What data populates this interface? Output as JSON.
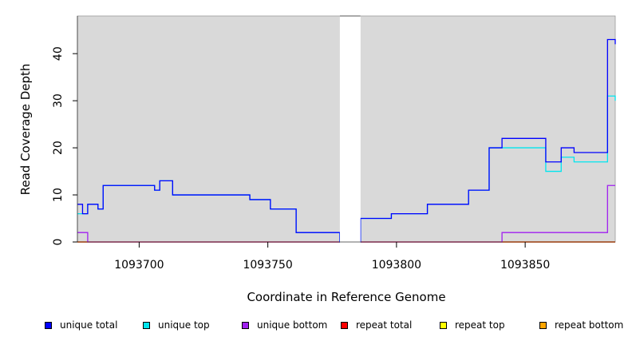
{
  "chart_data": {
    "type": "line",
    "title": "",
    "xlabel": "Coordinate in Reference Genome",
    "ylabel": "Read Coverage Depth",
    "xlim": [
      1093676,
      1093885
    ],
    "ylim": [
      0,
      48
    ],
    "x_ticks": [
      1093700,
      1093750,
      1093800,
      1093850
    ],
    "y_ticks": [
      0,
      10,
      20,
      30,
      40
    ],
    "grid": false,
    "background": "#d9d9d9",
    "gap": [
      1093778,
      1093786
    ],
    "series": [
      {
        "name": "unique total",
        "color": "#0000ff",
        "x": [
          1093676,
          1093678,
          1093680,
          1093681,
          1093684,
          1093686,
          1093690,
          1093696,
          1093706,
          1093708,
          1093713,
          1093720,
          1093743,
          1093745,
          1093751,
          1093753,
          1093761,
          1093778,
          1093786,
          1093791,
          1093798,
          1093806,
          1093812,
          1093820,
          1093828,
          1093836,
          1093841,
          1093846,
          1093858,
          1093864,
          1093869,
          1093881,
          1093882,
          1093885
        ],
        "y": [
          8,
          6,
          8,
          8,
          7,
          12,
          12,
          12,
          11,
          13,
          10,
          10,
          9,
          9,
          7,
          7,
          2,
          0,
          5,
          5,
          6,
          6,
          8,
          8,
          11,
          20,
          22,
          22,
          17,
          20,
          19,
          19,
          43,
          42
        ]
      },
      {
        "name": "unique top",
        "color": "#00e5ee",
        "x": [
          1093676,
          1093678,
          1093680,
          1093681,
          1093684,
          1093686,
          1093690,
          1093696,
          1093706,
          1093708,
          1093713,
          1093720,
          1093743,
          1093745,
          1093751,
          1093753,
          1093761,
          1093778,
          1093786,
          1093791,
          1093798,
          1093806,
          1093812,
          1093820,
          1093828,
          1093836,
          1093841,
          1093846,
          1093858,
          1093864,
          1093869,
          1093881,
          1093882,
          1093885
        ],
        "y": [
          6,
          6,
          8,
          8,
          7,
          12,
          12,
          12,
          11,
          13,
          10,
          10,
          9,
          9,
          7,
          7,
          2,
          0,
          5,
          5,
          6,
          6,
          8,
          8,
          11,
          20,
          20,
          20,
          15,
          18,
          17,
          17,
          31,
          30
        ]
      },
      {
        "name": "unique bottom",
        "color": "#a020f0",
        "x": [
          1093676,
          1093678,
          1093680,
          1093841,
          1093881,
          1093882,
          1093885
        ],
        "y": [
          2,
          2,
          0,
          2,
          2,
          12,
          12
        ]
      },
      {
        "name": "repeat total",
        "color": "#ff0000",
        "x": [
          1093676,
          1093885
        ],
        "y": [
          0,
          0
        ]
      },
      {
        "name": "repeat top",
        "color": "#ffff00",
        "x": [
          1093676,
          1093885
        ],
        "y": [
          0,
          0
        ]
      },
      {
        "name": "repeat bottom",
        "color": "#ffa500",
        "x": [
          1093676,
          1093841,
          1093885
        ],
        "y": [
          0,
          0,
          0
        ]
      }
    ]
  }
}
